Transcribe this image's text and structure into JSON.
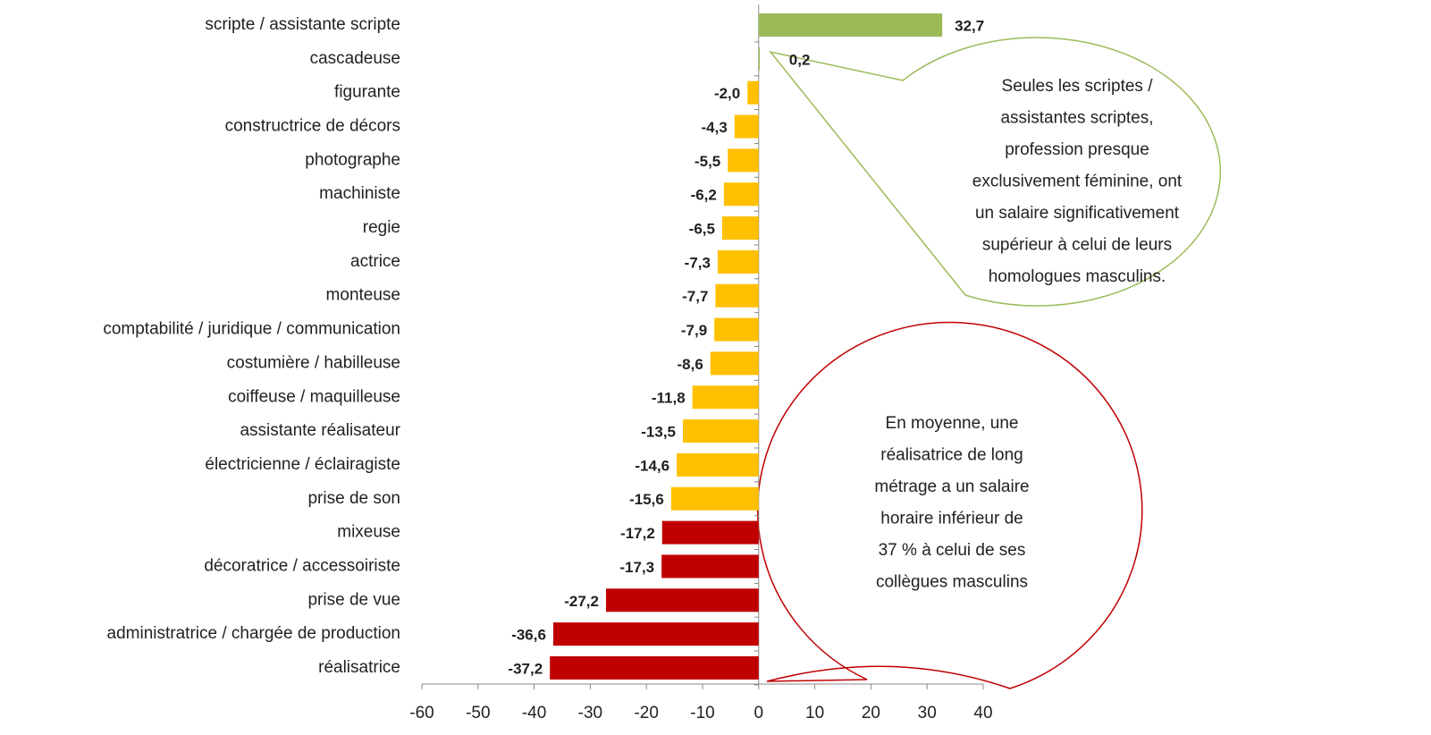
{
  "chart_data": {
    "type": "bar",
    "orientation": "horizontal",
    "categories": [
      "scripte / assistante scripte",
      "cascadeuse",
      "figurante",
      "constructrice de décors",
      "photographe",
      "machiniste",
      "regie",
      "actrice",
      "monteuse",
      "comptabilité / juridique / communication",
      "costumière / habilleuse",
      "coiffeuse / maquilleuse",
      "assistante réalisateur",
      "électricienne / éclairagiste",
      "prise de son",
      "mixeuse",
      "décoratrice / accessoiriste",
      "prise de vue",
      "administratrice / chargée de production",
      "réalisatrice"
    ],
    "values": [
      32.7,
      0.2,
      -2.0,
      -4.3,
      -5.5,
      -6.2,
      -6.5,
      -7.3,
      -7.7,
      -7.9,
      -8.6,
      -11.8,
      -13.5,
      -14.6,
      -15.6,
      -17.2,
      -17.3,
      -27.2,
      -36.6,
      -37.2
    ],
    "value_labels": [
      "32,7",
      "0,2",
      "-2,0",
      "-4,3",
      "-5,5",
      "-6,2",
      "-6,5",
      "-7,3",
      "-7,7",
      "-7,9",
      "-8,6",
      "-11,8",
      "-13,5",
      "-14,6",
      "-15,6",
      "-17,2",
      "-17,3",
      "-27,2",
      "-36,6",
      "-37,2"
    ],
    "colors": [
      "#9bbb59",
      "#9bbb59",
      "#ffc000",
      "#ffc000",
      "#ffc000",
      "#ffc000",
      "#ffc000",
      "#ffc000",
      "#ffc000",
      "#ffc000",
      "#ffc000",
      "#ffc000",
      "#ffc000",
      "#ffc000",
      "#ffc000",
      "#c00000",
      "#c00000",
      "#c00000",
      "#c00000",
      "#c00000"
    ],
    "xlim": [
      -60,
      40
    ],
    "xticks": [
      -60,
      -50,
      -40,
      -30,
      -20,
      -10,
      0,
      10,
      20,
      30,
      40
    ],
    "annotations": [
      {
        "lines": [
          "Seules les scriptes /",
          "assistantes scriptes,",
          "profession presque",
          "exclusivement féminine, ont",
          "un salaire significativement",
          "supérieur à celui de leurs",
          "homologues masculins."
        ]
      },
      {
        "lines": [
          "En moyenne, une",
          "réalisatrice de long",
          "métrage a un salaire",
          "horaire inférieur de",
          "37 % à celui de ses",
          "collègues masculins"
        ]
      }
    ]
  }
}
